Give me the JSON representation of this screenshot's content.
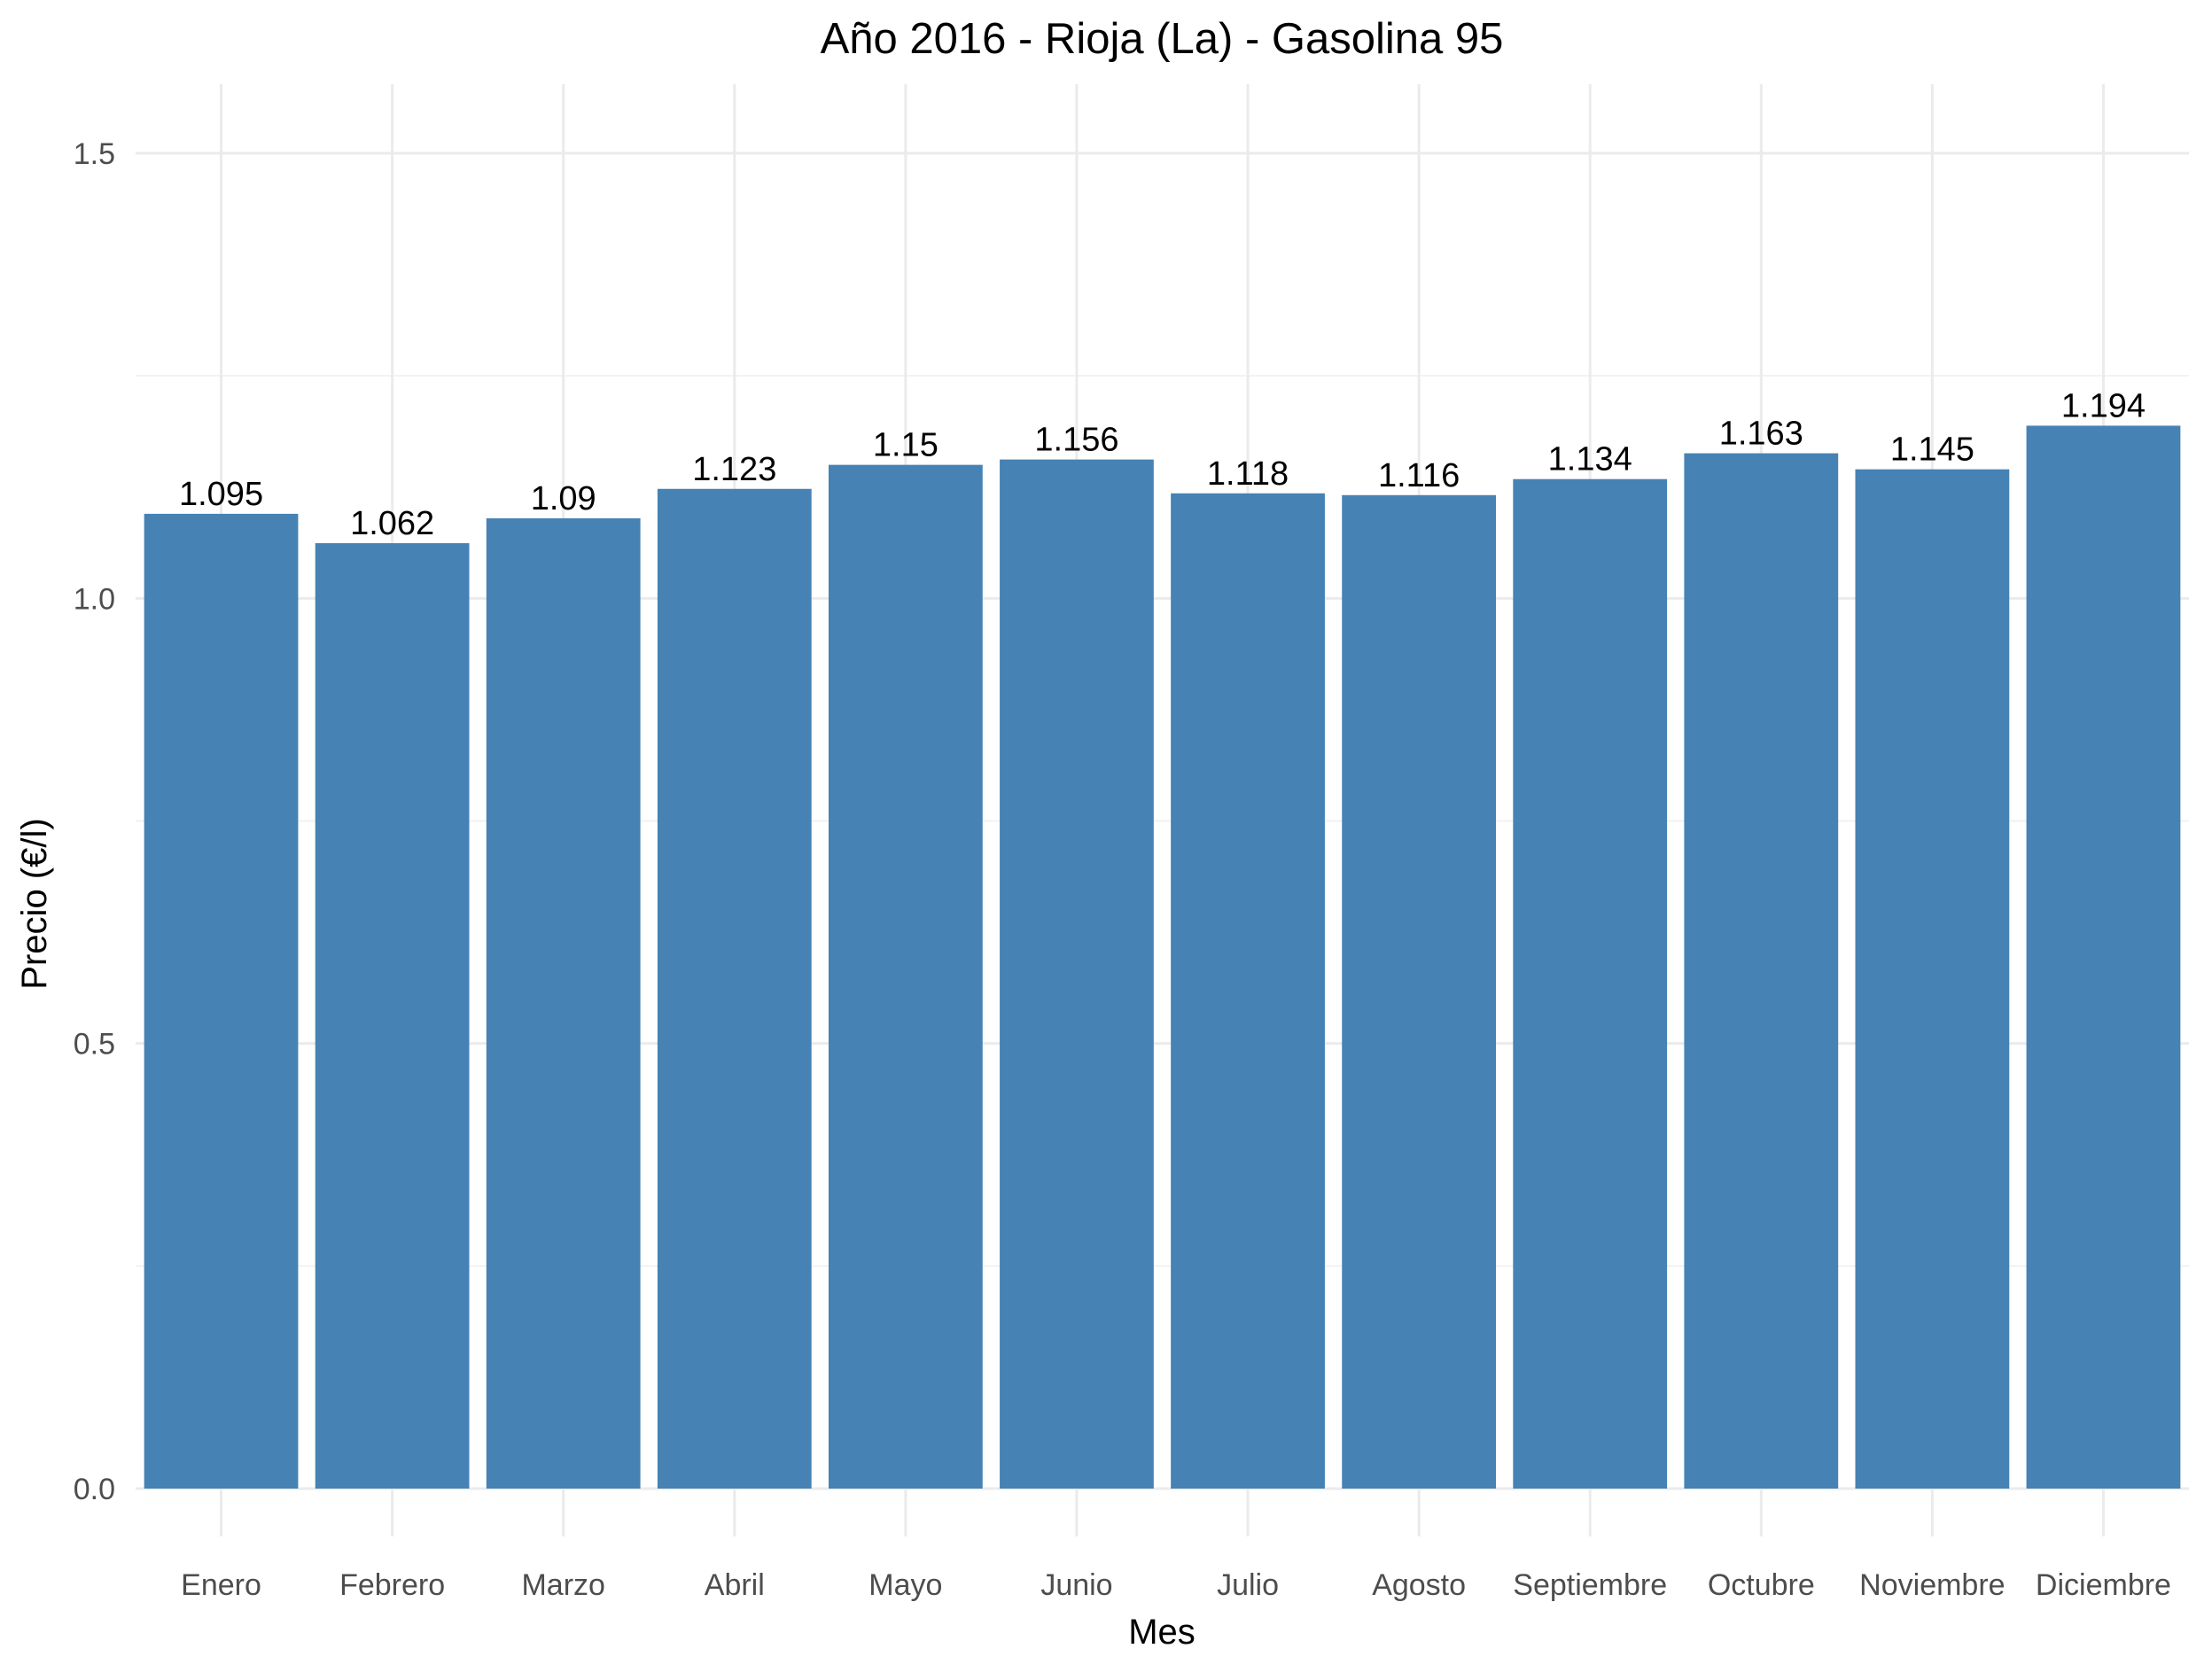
{
  "chart_data": {
    "type": "bar",
    "title": "Año 2016 - Rioja (La) - Gasolina 95",
    "xlabel": "Mes",
    "ylabel": "Precio (€/l)",
    "categories": [
      "Enero",
      "Febrero",
      "Marzo",
      "Abril",
      "Mayo",
      "Junio",
      "Julio",
      "Agosto",
      "Septiembre",
      "Octubre",
      "Noviembre",
      "Diciembre"
    ],
    "values": [
      1.095,
      1.062,
      1.09,
      1.123,
      1.15,
      1.156,
      1.118,
      1.116,
      1.134,
      1.163,
      1.145,
      1.194
    ],
    "value_labels": [
      "1.095",
      "1.062",
      "1.09",
      "1.123",
      "1.15",
      "1.156",
      "1.118",
      "1.116",
      "1.134",
      "1.163",
      "1.145",
      "1.194"
    ],
    "ylim": [
      0,
      1.5
    ],
    "yticks": [
      "0.0",
      "0.5",
      "1.0",
      "1.5"
    ],
    "grid": true,
    "bar_color": "#4682b4"
  }
}
